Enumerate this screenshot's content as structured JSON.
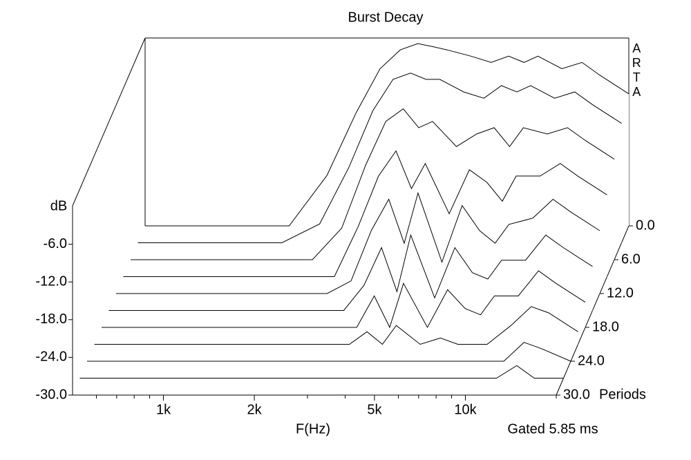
{
  "chart_data": {
    "type": "waterfall",
    "title": "Burst Decay",
    "x_label": "F(Hz)",
    "y_label": "dB",
    "z_label": "Periods",
    "note": "Gated 5.85 ms",
    "watermark": "ARTA",
    "log_x": true,
    "color": "#000000",
    "xlim": [
      500,
      20000
    ],
    "xticks": [
      {
        "value": 1000,
        "label": "1k"
      },
      {
        "value": 2000,
        "label": "2k"
      },
      {
        "value": 5000,
        "label": "5k"
      },
      {
        "value": 10000,
        "label": "10k"
      }
    ],
    "xminor_ticks": [
      600,
      700,
      800,
      900,
      3000,
      4000,
      6000,
      7000,
      8000,
      9000,
      20000
    ],
    "ylim": [
      -30,
      0
    ],
    "yticks": [
      {
        "value": -30,
        "label": "-30.0"
      },
      {
        "value": -24,
        "label": "-24.0"
      },
      {
        "value": -18,
        "label": "-18.0"
      },
      {
        "value": -12,
        "label": "-12.0"
      },
      {
        "value": -6,
        "label": "-6.0"
      }
    ],
    "zlim": [
      0,
      30
    ],
    "zticks": [
      {
        "value": 0,
        "label": "0.0"
      },
      {
        "value": 6,
        "label": "6.0"
      },
      {
        "value": 12,
        "label": "12.0"
      },
      {
        "value": 18,
        "label": "18.0"
      },
      {
        "value": 24,
        "label": "24.0"
      },
      {
        "value": 30,
        "label": "30.0"
      }
    ],
    "x": [
      500,
      1500,
      2000,
      2500,
      3000,
      3500,
      4000,
      4500,
      5000,
      6000,
      7000,
      8000,
      9000,
      10000,
      12000,
      14000,
      16000,
      20000
    ],
    "series": [
      {
        "period": 0,
        "values": [
          -30,
          -30,
          -22,
          -12,
          -5,
          -2,
          -1,
          -1.5,
          -2,
          -3,
          -4,
          -3,
          -4,
          -3,
          -5,
          -4,
          -6,
          -9
        ]
      },
      {
        "period": 3,
        "values": [
          -30,
          -30,
          -27,
          -18,
          -9,
          -4,
          -3,
          -4,
          -4,
          -6,
          -7,
          -5,
          -6,
          -5,
          -7,
          -6,
          -8,
          -11
        ]
      },
      {
        "period": 6,
        "values": [
          -30,
          -30,
          -30,
          -25,
          -15,
          -8,
          -6,
          -9,
          -8,
          -12,
          -10,
          -9,
          -12,
          -9,
          -10,
          -9,
          -11,
          -14
        ]
      },
      {
        "period": 9,
        "values": [
          -30,
          -30,
          -30,
          -30,
          -22,
          -14,
          -10,
          -16,
          -12,
          -20,
          -13,
          -15,
          -18,
          -14,
          -14,
          -12,
          -14,
          -17
        ]
      },
      {
        "period": 12,
        "values": [
          -30,
          -30,
          -30,
          -30,
          -28,
          -20,
          -15,
          -22,
          -14,
          -25,
          -16,
          -20,
          -22,
          -19,
          -18,
          -15,
          -17,
          -20
        ]
      },
      {
        "period": 15,
        "values": [
          -30,
          -30,
          -30,
          -30,
          -30,
          -26,
          -20,
          -27,
          -18,
          -28,
          -20,
          -24,
          -25,
          -22,
          -22,
          -18,
          -20,
          -23
        ]
      },
      {
        "period": 18,
        "values": [
          -30,
          -30,
          -30,
          -30,
          -30,
          -30,
          -25,
          -30,
          -23,
          -30,
          -24,
          -27,
          -28,
          -25,
          -25,
          -21,
          -23,
          -26
        ]
      },
      {
        "period": 21,
        "values": [
          -30,
          -30,
          -30,
          -30,
          -30,
          -30,
          -28,
          -30,
          -27,
          -30,
          -29,
          -30,
          -30,
          -30,
          -27,
          -24,
          -25,
          -28
        ]
      },
      {
        "period": 24,
        "values": [
          -30,
          -30,
          -30,
          -30,
          -30,
          -30,
          -30,
          -30,
          -30,
          -30,
          -30,
          -30,
          -30,
          -30,
          -30,
          -27,
          -28,
          -30
        ]
      },
      {
        "period": 27,
        "values": [
          -30,
          -30,
          -30,
          -30,
          -30,
          -30,
          -30,
          -30,
          -30,
          -30,
          -30,
          -30,
          -30,
          -30,
          -30,
          -28,
          -30,
          -30
        ]
      },
      {
        "period": 30,
        "values": [
          -30,
          -30,
          -30,
          -30,
          -30,
          -30,
          -30,
          -30,
          -30,
          -30,
          -30,
          -30,
          -30,
          -30,
          -30,
          -30,
          -30,
          -30
        ]
      }
    ]
  }
}
